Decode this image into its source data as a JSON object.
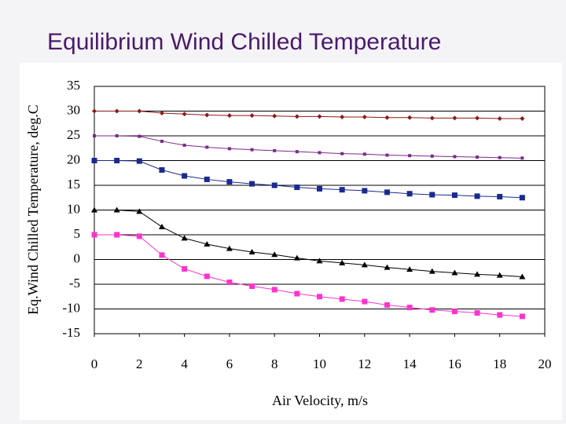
{
  "chart_data": {
    "type": "line",
    "title": "Equilibrium Wind Chilled Temperature",
    "xlabel": "Air Velocity, m/s",
    "ylabel": "Eq.Wind Chilled Temperature, deg.C",
    "x": [
      0,
      1,
      2,
      3,
      4,
      5,
      6,
      7,
      8,
      9,
      10,
      11,
      12,
      13,
      14,
      15,
      16,
      17,
      18,
      19
    ],
    "series": [
      {
        "color": "#8b1a1a",
        "marker": "diamond",
        "values": [
          30,
          30,
          30,
          29.6,
          29.4,
          29.2,
          29.1,
          29.1,
          29,
          28.9,
          28.9,
          28.8,
          28.8,
          28.7,
          28.7,
          28.6,
          28.6,
          28.6,
          28.5,
          28.5
        ]
      },
      {
        "color": "#7b2a8a",
        "marker": "small-square",
        "values": [
          25,
          25,
          24.9,
          23.9,
          23.1,
          22.7,
          22.4,
          22.2,
          22,
          21.8,
          21.6,
          21.4,
          21.3,
          21.1,
          21,
          20.9,
          20.8,
          20.7,
          20.6,
          20.5
        ]
      },
      {
        "color": "#1a2a8e",
        "marker": "square",
        "values": [
          20,
          20,
          19.9,
          18.1,
          16.9,
          16.2,
          15.7,
          15.3,
          15,
          14.6,
          14.3,
          14.1,
          13.9,
          13.6,
          13.3,
          13.1,
          13,
          12.8,
          12.7,
          12.5
        ]
      },
      {
        "color": "#000000",
        "marker": "triangle",
        "values": [
          10,
          10,
          9.7,
          6.6,
          4.3,
          3.1,
          2.2,
          1.5,
          1,
          0.3,
          -0.3,
          -0.7,
          -1.1,
          -1.6,
          -2,
          -2.4,
          -2.7,
          -3,
          -3.2,
          -3.5
        ]
      },
      {
        "color": "#ff33cc",
        "marker": "square",
        "values": [
          5,
          5,
          4.7,
          0.9,
          -1.9,
          -3.4,
          -4.6,
          -5.4,
          -6.1,
          -6.9,
          -7.5,
          -8,
          -8.5,
          -9.2,
          -9.7,
          -10.2,
          -10.5,
          -10.8,
          -11.2,
          -11.5
        ]
      }
    ],
    "xlim": [
      0,
      20
    ],
    "xticks": [
      0,
      2,
      4,
      6,
      8,
      10,
      12,
      14,
      16,
      18,
      20
    ],
    "ylim": [
      -15,
      35
    ],
    "yticks": [
      -15,
      -10,
      -5,
      0,
      5,
      10,
      15,
      20,
      25,
      30,
      35
    ],
    "grid": true
  }
}
